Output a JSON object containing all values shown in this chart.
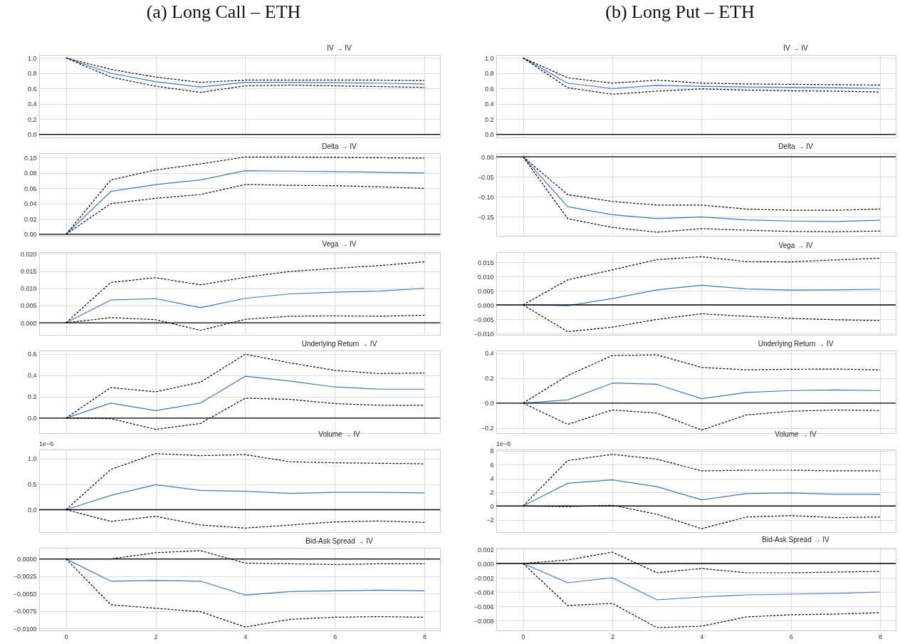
{
  "chart_data": [
    {
      "type": "line",
      "title": "(a) Long Call – ETH",
      "subtitle": "IV → IV",
      "x": [
        0,
        1,
        2,
        3,
        4,
        5,
        6,
        7,
        8
      ],
      "xlim": [
        -0.6,
        8.35
      ],
      "xticks": [
        0,
        2,
        4,
        6,
        8
      ],
      "ylim": [
        -0.04,
        1.04
      ],
      "yticks": [
        {
          "value": 0,
          "label": "0.0"
        },
        0.2,
        0.4,
        0.6,
        0.8,
        {
          "value": 1,
          "label": "1.0"
        }
      ],
      "grid": true,
      "tick_labels": "y",
      "series": [
        {
          "color": "#4c72b0",
          "line_style": "solid",
          "values": [
            1,
            0.8,
            0.69,
            0.62,
            0.68,
            0.68,
            0.675,
            0.67,
            0.66
          ]
        },
        {
          "color": "#000000",
          "line_style": "dashed",
          "values": [
            1,
            0.85,
            0.75,
            0.68,
            0.71,
            0.71,
            0.71,
            0.71,
            0.705
          ]
        },
        {
          "color": "#000000",
          "line_style": "dashed",
          "values": [
            1,
            0.75,
            0.63,
            0.55,
            0.635,
            0.645,
            0.635,
            0.625,
            0.615
          ]
        }
      ],
      "ref_lines": [
        {
          "axis": "y",
          "value": 0,
          "color": "#000000"
        }
      ]
    },
    {
      "type": "line",
      "subtitle": "Delta → IV",
      "x": [
        0,
        1,
        2,
        3,
        4,
        5,
        6,
        7,
        8
      ],
      "xlim": [
        -0.6,
        8.35
      ],
      "xticks": [
        0,
        2,
        4,
        6,
        8
      ],
      "ylim": [
        -0.002,
        0.106
      ],
      "yticks": [
        {
          "value": 0,
          "label": "0.00"
        },
        0.02,
        0.04,
        0.06,
        0.08,
        {
          "value": 0.1,
          "label": "0.10"
        }
      ],
      "grid": true,
      "tick_labels": "y",
      "series": [
        {
          "color": "#4c72b0",
          "line_style": "solid",
          "values": [
            0,
            0.056,
            0.065,
            0.071,
            0.083,
            0.0825,
            0.082,
            0.081,
            0.08
          ]
        },
        {
          "color": "#000000",
          "line_style": "dashed",
          "values": [
            0,
            0.071,
            0.084,
            0.092,
            0.101,
            0.101,
            0.1005,
            0.1,
            0.0995
          ]
        },
        {
          "color": "#000000",
          "line_style": "dashed",
          "values": [
            0,
            0.04,
            0.047,
            0.052,
            0.065,
            0.064,
            0.0635,
            0.062,
            0.06
          ]
        }
      ],
      "ref_lines": [
        {
          "axis": "y",
          "value": 0,
          "color": "#000000"
        }
      ]
    },
    {
      "type": "line",
      "subtitle": "Vega → IV",
      "x": [
        0,
        1,
        2,
        3,
        4,
        5,
        6,
        7,
        8
      ],
      "xlim": [
        -0.6,
        8.35
      ],
      "xticks": [
        0,
        2,
        4,
        6,
        8
      ],
      "ylim": [
        -0.0035,
        0.0205
      ],
      "yticks": [
        {
          "value": 0,
          "label": "0.000"
        },
        0.005,
        {
          "value": 0.01,
          "label": "0.010"
        },
        0.015,
        {
          "value": 0.02,
          "label": "0.020"
        }
      ],
      "grid": true,
      "tick_labels": "y",
      "series": [
        {
          "color": "#4c72b0",
          "line_style": "solid",
          "values": [
            0,
            0.0066,
            0.007,
            0.0044,
            0.0071,
            0.0084,
            0.0089,
            0.0092,
            0.01
          ]
        },
        {
          "color": "#000000",
          "line_style": "dashed",
          "values": [
            0,
            0.0117,
            0.0131,
            0.011,
            0.0132,
            0.0149,
            0.0158,
            0.0166,
            0.0177
          ]
        },
        {
          "color": "#000000",
          "line_style": "dashed",
          "values": [
            0,
            0.0015,
            0.0009,
            -0.0022,
            0.001,
            0.0019,
            0.002,
            0.0019,
            0.0022
          ]
        }
      ],
      "ref_lines": [
        {
          "axis": "y",
          "value": 0,
          "color": "#000000"
        }
      ]
    },
    {
      "type": "line",
      "subtitle": "Underlying Return → IV",
      "x": [
        0,
        1,
        2,
        3,
        4,
        5,
        6,
        7,
        8
      ],
      "xlim": [
        -0.6,
        8.35
      ],
      "xticks": [
        0,
        2,
        4,
        6,
        8
      ],
      "ylim": [
        -0.14,
        0.63
      ],
      "yticks": [
        {
          "value": 0,
          "label": "0.0"
        },
        0.2,
        0.4,
        0.6
      ],
      "grid": true,
      "tick_labels": "y",
      "series": [
        {
          "color": "#4c72b0",
          "line_style": "solid",
          "values": [
            0,
            0.14,
            0.07,
            0.14,
            0.39,
            0.345,
            0.29,
            0.27,
            0.27
          ]
        },
        {
          "color": "#000000",
          "line_style": "dashed",
          "values": [
            0,
            0.285,
            0.245,
            0.335,
            0.595,
            0.515,
            0.445,
            0.415,
            0.42
          ]
        },
        {
          "color": "#000000",
          "line_style": "dashed",
          "values": [
            0,
            -0.005,
            -0.105,
            -0.05,
            0.185,
            0.175,
            0.135,
            0.12,
            0.12
          ]
        }
      ],
      "ref_lines": [
        {
          "axis": "y",
          "value": 0,
          "color": "#000000"
        }
      ]
    },
    {
      "type": "line",
      "subtitle": "Volume → IV",
      "annotations": [
        "1e−6"
      ],
      "x": [
        0,
        1,
        2,
        3,
        4,
        5,
        6,
        7,
        8
      ],
      "xlim": [
        -0.6,
        8.35
      ],
      "xticks": [
        0,
        2,
        4,
        6,
        8
      ],
      "ylim": [
        -0.44,
        1.18
      ],
      "yticks": [
        {
          "value": 0,
          "label": "0.0"
        },
        0.5,
        {
          "value": 1,
          "label": "1.0"
        }
      ],
      "grid": true,
      "tick_labels": "y",
      "series": [
        {
          "color": "#4c72b0",
          "line_style": "solid",
          "values": [
            0,
            0.28,
            0.49,
            0.38,
            0.36,
            0.32,
            0.34,
            0.34,
            0.33
          ]
        },
        {
          "color": "#000000",
          "line_style": "dashed",
          "values": [
            0,
            0.79,
            1.1,
            1.06,
            1.08,
            0.94,
            0.92,
            0.91,
            0.9
          ]
        },
        {
          "color": "#000000",
          "line_style": "dashed",
          "values": [
            0,
            -0.23,
            -0.13,
            -0.3,
            -0.36,
            -0.3,
            -0.24,
            -0.22,
            -0.25
          ]
        }
      ],
      "ref_lines": [
        {
          "axis": "y",
          "value": 0,
          "color": "#000000"
        }
      ]
    },
    {
      "type": "line",
      "subtitle": "Bid-Ask Spread → IV",
      "x": [
        0,
        1,
        2,
        3,
        4,
        5,
        6,
        7,
        8
      ],
      "xlim": [
        -0.6,
        8.35
      ],
      "xticks": [
        0,
        2,
        4,
        6,
        8
      ],
      "ylim": [
        -0.0103,
        0.0016
      ],
      "yticks": [
        {
          "value": 0,
          "label": "0.0000"
        },
        {
          "value": -0.0025,
          "label": "−0.0025"
        },
        {
          "value": -0.005,
          "label": "−0.0050"
        },
        {
          "value": -0.0075,
          "label": "−0.0075"
        },
        {
          "value": -0.01,
          "label": "−0.0100"
        }
      ],
      "grid": true,
      "series": [
        {
          "color": "#4c72b0",
          "line_style": "solid",
          "values": [
            0,
            -0.0032,
            -0.0031,
            -0.0032,
            -0.0052,
            -0.0047,
            -0.0046,
            -0.0045,
            -0.0046
          ]
        },
        {
          "color": "#000000",
          "line_style": "dashed",
          "values": [
            0,
            0,
            0.0009,
            0.0012,
            -0.0006,
            -0.0007,
            -0.0008,
            -0.0007,
            -0.0007
          ]
        },
        {
          "color": "#000000",
          "line_style": "dashed",
          "values": [
            0,
            -0.0066,
            -0.0071,
            -0.0076,
            -0.0098,
            -0.0087,
            -0.0084,
            -0.0083,
            -0.0084
          ]
        }
      ],
      "ref_lines": [
        {
          "axis": "y",
          "value": 0,
          "color": "#000000"
        }
      ]
    },
    {
      "type": "line",
      "title": "(b) Long Put – ETH",
      "subtitle": "IV → IV",
      "x": [
        0,
        1,
        2,
        3,
        4,
        5,
        6,
        7,
        8
      ],
      "xlim": [
        -0.6,
        8.35
      ],
      "xticks": [
        0,
        2,
        4,
        6,
        8
      ],
      "ylim": [
        -0.04,
        1.04
      ],
      "yticks": [
        {
          "value": 0,
          "label": "0.0"
        },
        0.2,
        0.4,
        0.6,
        0.8,
        {
          "value": 1,
          "label": "1.0"
        }
      ],
      "grid": true,
      "tick_labels": "y",
      "series": [
        {
          "color": "#4c72b0",
          "line_style": "solid",
          "values": [
            1,
            0.67,
            0.6,
            0.64,
            0.63,
            0.62,
            0.615,
            0.61,
            0.6
          ]
        },
        {
          "color": "#000000",
          "line_style": "dashed",
          "values": [
            1,
            0.74,
            0.67,
            0.71,
            0.67,
            0.66,
            0.655,
            0.65,
            0.645
          ]
        },
        {
          "color": "#000000",
          "line_style": "dashed",
          "values": [
            1,
            0.61,
            0.525,
            0.565,
            0.595,
            0.58,
            0.57,
            0.565,
            0.555
          ]
        }
      ],
      "ref_lines": [
        {
          "axis": "y",
          "value": 0,
          "color": "#000000"
        }
      ]
    },
    {
      "type": "line",
      "subtitle": "Delta → IV",
      "x": [
        0,
        1,
        2,
        3,
        4,
        5,
        6,
        7,
        8
      ],
      "xlim": [
        -0.6,
        8.35
      ],
      "xticks": [
        0,
        2,
        4,
        6,
        8
      ],
      "ylim": [
        -0.198,
        0.009
      ],
      "yticks": [
        {
          "value": 0,
          "label": "0.00"
        },
        {
          "value": -0.05,
          "label": "−0.05"
        },
        {
          "value": -0.1,
          "label": "−0.10"
        },
        {
          "value": -0.15,
          "label": "−0.15"
        }
      ],
      "grid": true,
      "tick_labels": "y",
      "series": [
        {
          "color": "#4c72b0",
          "line_style": "solid",
          "values": [
            0,
            -0.125,
            -0.145,
            -0.155,
            -0.151,
            -0.158,
            -0.161,
            -0.162,
            -0.159
          ]
        },
        {
          "color": "#000000",
          "line_style": "dashed",
          "values": [
            0,
            -0.095,
            -0.112,
            -0.121,
            -0.121,
            -0.131,
            -0.134,
            -0.134,
            -0.131
          ]
        },
        {
          "color": "#000000",
          "line_style": "dashed",
          "values": [
            0,
            -0.155,
            -0.177,
            -0.189,
            -0.18,
            -0.184,
            -0.187,
            -0.188,
            -0.186
          ]
        }
      ],
      "ref_lines": [
        {
          "axis": "y",
          "value": 0,
          "color": "#000000"
        }
      ]
    },
    {
      "type": "line",
      "subtitle": "Vega → IV",
      "x": [
        0,
        1,
        2,
        3,
        4,
        5,
        6,
        7,
        8
      ],
      "xlim": [
        -0.6,
        8.35
      ],
      "xticks": [
        0,
        2,
        4,
        6,
        8
      ],
      "ylim": [
        -0.0105,
        0.0185
      ],
      "yticks": [
        {
          "value": -0.01,
          "label": "−0.010"
        },
        {
          "value": -0.005,
          "label": "−0.005"
        },
        {
          "value": 0,
          "label": "0.000"
        },
        0.005,
        {
          "value": 0.01,
          "label": "0.010"
        },
        0.015
      ],
      "grid": true,
      "tick_labels": "y",
      "series": [
        {
          "color": "#4c72b0",
          "line_style": "solid",
          "values": [
            0,
            -0.0003,
            0.0022,
            0.0053,
            0.0069,
            0.0056,
            0.0052,
            0.0053,
            0.0055
          ]
        },
        {
          "color": "#000000",
          "line_style": "dashed",
          "values": [
            0,
            0.0088,
            0.0123,
            0.0159,
            0.0169,
            0.0152,
            0.0151,
            0.0158,
            0.0164
          ]
        },
        {
          "color": "#000000",
          "line_style": "dashed",
          "values": [
            0,
            -0.0094,
            -0.0078,
            -0.0051,
            -0.0031,
            -0.004,
            -0.0047,
            -0.0052,
            -0.0055
          ]
        }
      ],
      "ref_lines": [
        {
          "axis": "y",
          "value": 0,
          "color": "#000000"
        }
      ]
    },
    {
      "type": "line",
      "subtitle": "Underlying Return → IV",
      "x": [
        0,
        1,
        2,
        3,
        4,
        5,
        6,
        7,
        8
      ],
      "xlim": [
        -0.6,
        8.35
      ],
      "xticks": [
        0,
        2,
        4,
        6,
        8
      ],
      "ylim": [
        -0.24,
        0.42
      ],
      "yticks": [
        {
          "value": -0.2,
          "label": "−0.2"
        },
        {
          "value": 0,
          "label": "0.0"
        },
        0.2,
        0.4
      ],
      "grid": true,
      "tick_labels": "y",
      "series": [
        {
          "color": "#4c72b0",
          "line_style": "solid",
          "values": [
            0,
            0.025,
            0.16,
            0.15,
            0.035,
            0.085,
            0.1,
            0.105,
            0.1
          ]
        },
        {
          "color": "#000000",
          "line_style": "dashed",
          "values": [
            0,
            0.22,
            0.38,
            0.385,
            0.285,
            0.265,
            0.27,
            0.272,
            0.265
          ]
        },
        {
          "color": "#000000",
          "line_style": "dashed",
          "values": [
            0,
            -0.17,
            -0.055,
            -0.08,
            -0.215,
            -0.095,
            -0.065,
            -0.055,
            -0.06
          ]
        }
      ],
      "ref_lines": [
        {
          "axis": "y",
          "value": 0,
          "color": "#000000"
        }
      ]
    },
    {
      "type": "line",
      "subtitle": "Volume → IV",
      "annotations": [
        "1e−6"
      ],
      "x": [
        0,
        1,
        2,
        3,
        4,
        5,
        6,
        7,
        8
      ],
      "xlim": [
        -0.6,
        8.35
      ],
      "xticks": [
        0,
        2,
        4,
        6,
        8
      ],
      "ylim": [
        -3.8,
        8.2
      ],
      "yticks": [
        {
          "value": -2,
          "label": "−2"
        },
        0,
        2,
        4,
        6,
        8
      ],
      "grid": true,
      "tick_labels": "y",
      "series": [
        {
          "color": "#4c72b0",
          "line_style": "solid",
          "values": [
            0,
            3.3,
            3.8,
            2.8,
            0.9,
            1.8,
            1.9,
            1.7,
            1.7
          ]
        },
        {
          "color": "#000000",
          "line_style": "dashed",
          "values": [
            0,
            6.6,
            7.5,
            6.8,
            5.1,
            5.2,
            5.2,
            5.1,
            5.1
          ]
        },
        {
          "color": "#000000",
          "line_style": "dashed",
          "values": [
            0,
            -0.1,
            0.1,
            -1.2,
            -3.3,
            -1.6,
            -1.4,
            -1.7,
            -1.6
          ]
        }
      ],
      "ref_lines": [
        {
          "axis": "y",
          "value": 0,
          "color": "#000000"
        }
      ]
    },
    {
      "type": "line",
      "subtitle": "Bid-Ask Spread → IV",
      "x": [
        0,
        1,
        2,
        3,
        4,
        5,
        6,
        7,
        8
      ],
      "xlim": [
        -0.6,
        8.35
      ],
      "xticks": [
        0,
        2,
        4,
        6,
        8
      ],
      "ylim": [
        -0.0094,
        0.0022
      ],
      "yticks": [
        {
          "value": -0.008,
          "label": "−0.008"
        },
        {
          "value": -0.006,
          "label": "−0.006"
        },
        {
          "value": -0.004,
          "label": "−0.004"
        },
        {
          "value": -0.002,
          "label": "−0.002"
        },
        {
          "value": 0,
          "label": "0.000"
        },
        0.002
      ],
      "grid": true,
      "series": [
        {
          "color": "#4c72b0",
          "line_style": "solid",
          "values": [
            0,
            -0.0027,
            -0.002,
            -0.0051,
            -0.0047,
            -0.0044,
            -0.0043,
            -0.0042,
            -0.004
          ]
        },
        {
          "color": "#000000",
          "line_style": "dashed",
          "values": [
            0,
            0.0005,
            0.0016,
            -0.0013,
            -0.0007,
            -0.0013,
            -0.0013,
            -0.0012,
            -0.0011
          ]
        },
        {
          "color": "#000000",
          "line_style": "dashed",
          "values": [
            0,
            -0.0059,
            -0.0056,
            -0.009,
            -0.0088,
            -0.0075,
            -0.0072,
            -0.0071,
            -0.0069
          ]
        }
      ],
      "ref_lines": [
        {
          "axis": "y",
          "value": 0,
          "color": "#000000"
        }
      ]
    }
  ]
}
